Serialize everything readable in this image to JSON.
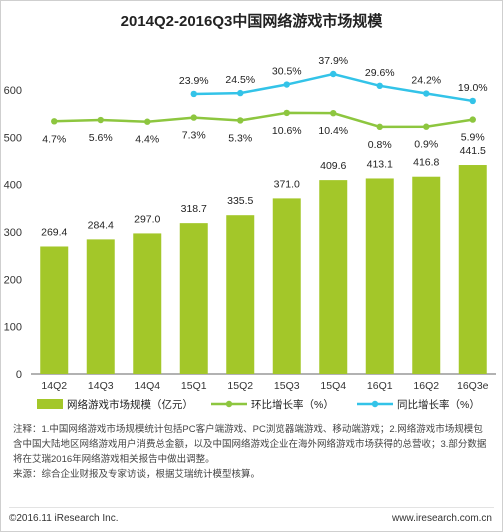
{
  "chart_data": {
    "type": "bar",
    "title": "2014Q2-2016Q3中国网络游戏市场规模",
    "categories": [
      "14Q2",
      "14Q3",
      "14Q4",
      "15Q1",
      "15Q2",
      "15Q3",
      "15Q4",
      "16Q1",
      "16Q2",
      "16Q3e"
    ],
    "ylim": [
      0,
      600
    ],
    "yticks": [
      0,
      100,
      200,
      300,
      400,
      500,
      600
    ],
    "series": [
      {
        "name": "网络游戏市场规模（亿元）",
        "type": "bar",
        "color": "#a3c729",
        "values": [
          269.4,
          284.4,
          297.0,
          318.7,
          335.5,
          371.0,
          409.6,
          413.1,
          416.8,
          441.5
        ],
        "labels": [
          "269.4",
          "284.4",
          "297.0",
          "318.7",
          "335.5",
          "371.0",
          "409.6",
          "413.1",
          "416.8",
          "441.5"
        ]
      },
      {
        "name": "环比增长率（%）",
        "type": "line",
        "color": "#8dc63f",
        "values": [
          4.7,
          5.6,
          4.4,
          7.3,
          5.3,
          10.6,
          10.4,
          0.8,
          0.9,
          5.9
        ],
        "labels": [
          "4.7%",
          "5.6%",
          "4.4%",
          "7.3%",
          "5.3%",
          "10.6%",
          "10.4%",
          "0.8%",
          "0.9%",
          "5.9%"
        ]
      },
      {
        "name": "同比增长率（%）",
        "type": "line",
        "color": "#33c3e8",
        "values": [
          null,
          null,
          null,
          23.9,
          24.5,
          30.5,
          37.9,
          29.6,
          24.2,
          19.0
        ],
        "labels": [
          "",
          "",
          "",
          "23.9%",
          "24.5%",
          "30.5%",
          "37.9%",
          "29.6%",
          "24.2%",
          "19.0%"
        ]
      }
    ],
    "grid": false,
    "legend": "bottom"
  },
  "notes": {
    "line1": "注释：1.中国网络游戏市场规模统计包括PC客户端游戏、PC浏览器端游戏、移动端游戏；2.网络游戏市场规模包含中国大陆地区网络游戏用户消费总金额，以及中国网络游戏企业在海外网络游戏市场获得的总营收；3.部分数据将在艾瑞2016年网络游戏相关报告中做出调整。",
    "line2": "来源：综合企业财报及专家访谈，根据艾瑞统计模型核算。"
  },
  "footer": {
    "left": "©2016.11 iResearch Inc.",
    "right": "www.iresearch.com.cn"
  }
}
